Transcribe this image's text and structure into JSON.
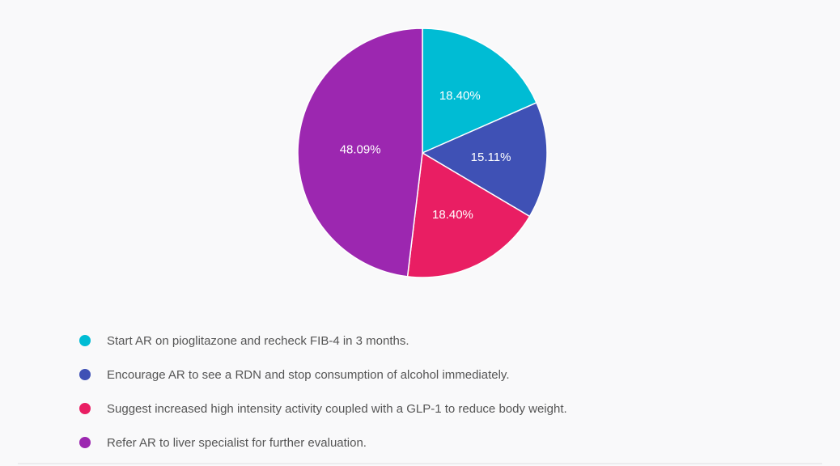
{
  "chart_data": {
    "type": "pie",
    "start": "top",
    "direction": "clockwise",
    "slices": [
      {
        "label": "Start AR on pioglitazone and recheck FIB-4 in 3 months.",
        "value": 18.4,
        "display": "18.40%",
        "color": "#00bcd4"
      },
      {
        "label": "Encourage AR to see a RDN and stop consumption of alcohol immediately.",
        "value": 15.11,
        "display": "15.11%",
        "color": "#3f51b5"
      },
      {
        "label": "Suggest increased high intensity activity coupled with a GLP-1 to reduce body weight.",
        "value": 18.4,
        "display": "18.40%",
        "color": "#e91e63"
      },
      {
        "label": "Refer AR to liver specialist for further evaluation.",
        "value": 48.09,
        "display": "48.09%",
        "color": "#9c27b0"
      }
    ],
    "legend_position": "bottom-left"
  }
}
